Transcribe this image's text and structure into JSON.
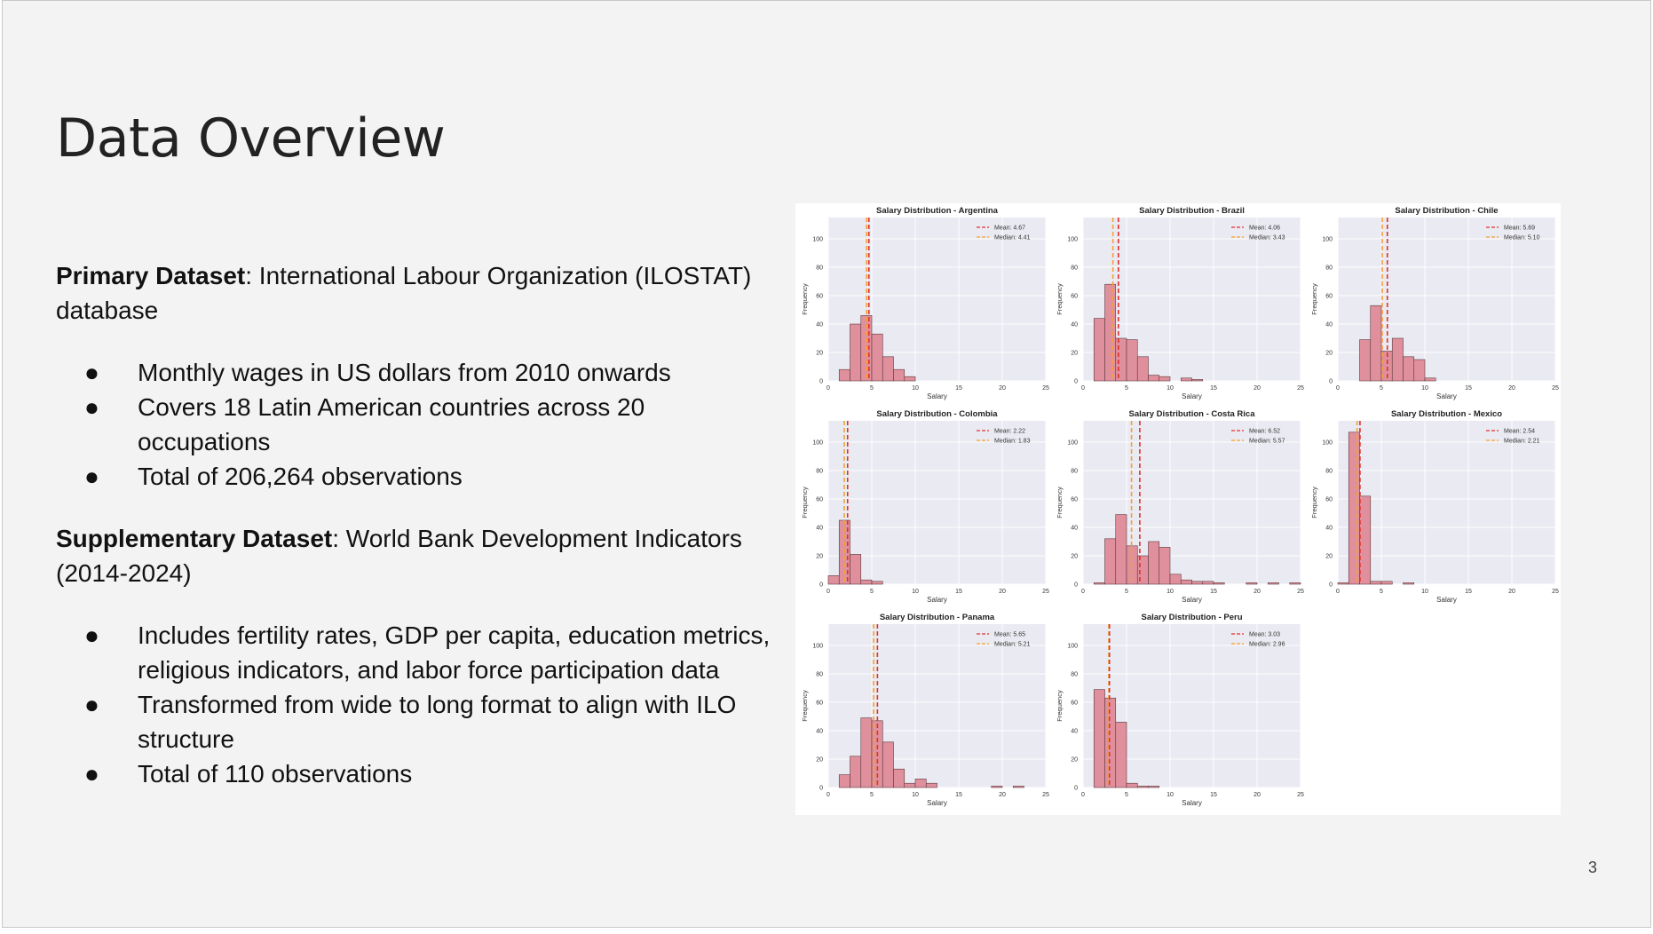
{
  "slide": {
    "title": "Data Overview",
    "page_number": "3",
    "primary": {
      "label": "Primary Dataset",
      "text": ": International Labour Organization (ILOSTAT) database",
      "bullets": [
        "Monthly wages in US dollars from 2010 onwards",
        "Covers 18 Latin American countries across 20 occupations",
        "Total of 206,264 observations"
      ]
    },
    "supplementary": {
      "label": "Supplementary Dataset",
      "text": ": World Bank Development Indicators (2014-2024)",
      "bullets": [
        "Includes fertility rates, GDP per capita, education metrics, religious indicators, and labor force participation data",
        "Transformed from wide to long format to align with ILO structure",
        "Total of 110 observations"
      ]
    },
    "bullet_char": "●"
  },
  "chart_data": {
    "type": "bar",
    "xlabel": "Salary",
    "ylabel": "Frequency",
    "xlim": [
      0,
      25
    ],
    "ylim": [
      0,
      115
    ],
    "xticks": [
      0,
      5,
      10,
      15,
      20,
      25
    ],
    "yticks": [
      0,
      20,
      40,
      60,
      80,
      100
    ],
    "bin_width": 1.25,
    "bar_color": "#e0909c",
    "mean_color": "#e03030",
    "median_color": "#f5a030",
    "grid": true,
    "legend": "top-right",
    "panels": [
      {
        "title": "Salary Distribution - Argentina",
        "mean": 4.67,
        "median": 4.41,
        "mean_label": "Mean: 4.67",
        "median_label": "Median: 4.41",
        "bin_start": 1.25,
        "values": [
          8,
          40,
          46,
          33,
          17,
          8,
          3
        ]
      },
      {
        "title": "Salary Distribution - Brazil",
        "mean": 4.06,
        "median": 3.43,
        "mean_label": "Mean: 4.06",
        "median_label": "Median: 3.43",
        "bin_start": 1.25,
        "values": [
          44,
          68,
          30,
          29,
          17,
          4,
          3,
          0,
          2,
          1
        ]
      },
      {
        "title": "Salary Distribution - Chile",
        "mean": 5.69,
        "median": 5.1,
        "mean_label": "Mean: 5.69",
        "median_label": "Median: 5.10",
        "bin_start": 2.5,
        "values": [
          29,
          53,
          21,
          30,
          17,
          15,
          2
        ]
      },
      {
        "title": "Salary Distribution - Colombia",
        "mean": 2.22,
        "median": 1.83,
        "mean_label": "Mean: 2.22",
        "median_label": "Median: 1.83",
        "bin_start": 0,
        "values": [
          6,
          45,
          21,
          3,
          2
        ]
      },
      {
        "title": "Salary Distribution - Costa Rica",
        "mean": 6.52,
        "median": 5.57,
        "mean_label": "Mean: 6.52",
        "median_label": "Median: 5.57",
        "bin_start": 1.25,
        "values": [
          1,
          32,
          49,
          27,
          20,
          30,
          26,
          7,
          3,
          2,
          2,
          1,
          0,
          0,
          1,
          0,
          1,
          0,
          1
        ]
      },
      {
        "title": "Salary Distribution - Mexico",
        "mean": 2.54,
        "median": 2.21,
        "mean_label": "Mean: 2.54",
        "median_label": "Median: 2.21",
        "bin_start": 0,
        "values": [
          1,
          107,
          62,
          2,
          2,
          0,
          1
        ]
      },
      {
        "title": "Salary Distribution - Panama",
        "mean": 5.65,
        "median": 5.21,
        "mean_label": "Mean: 5.65",
        "median_label": "Median: 5.21",
        "bin_start": 1.25,
        "values": [
          9,
          22,
          49,
          47,
          32,
          13,
          3,
          6,
          3,
          0,
          0,
          0,
          0,
          0,
          1,
          0,
          1
        ]
      },
      {
        "title": "Salary Distribution - Peru",
        "mean": 3.03,
        "median": 2.96,
        "mean_label": "Mean: 3.03",
        "median_label": "Median: 2.96",
        "bin_start": 1.25,
        "values": [
          69,
          63,
          46,
          3,
          1,
          1
        ]
      }
    ]
  }
}
